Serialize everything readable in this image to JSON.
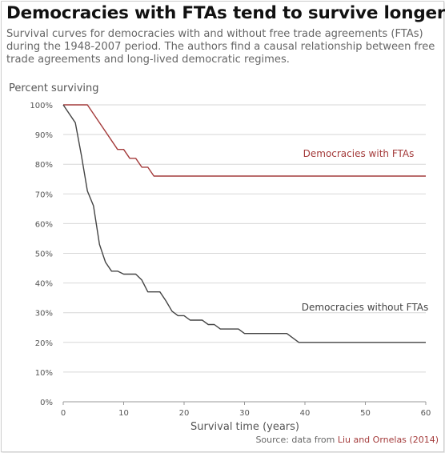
{
  "title": "Democracies with FTAs tend to survive longer",
  "subtitle": "Survival curves for democracies with and without free trade agreements (FTAs) during the 1948-2007 period. The authors find a causal relationship between free trade agreements and long-lived democratic regimes.",
  "source": {
    "prefix": "Source: data from ",
    "link_text": "Liu and Ornelas (2014)"
  },
  "colors": {
    "with_fta": "#a43b3b",
    "without_fta": "#444444",
    "grid": "#d7d7d7",
    "axis": "#999999",
    "text": "#555555"
  },
  "chart_data": {
    "type": "line",
    "ylabel": "Percent surviving",
    "xlabel": "Survival time (years)",
    "xlim": [
      0,
      60
    ],
    "ylim": [
      0,
      100
    ],
    "x_ticks": [
      0,
      10,
      20,
      30,
      40,
      50,
      60
    ],
    "y_ticks": [
      0,
      10,
      20,
      30,
      40,
      50,
      60,
      70,
      80,
      90,
      100
    ],
    "y_tick_labels": [
      "0%",
      "10%",
      "20%",
      "30%",
      "40%",
      "50%",
      "60%",
      "70%",
      "80%",
      "90%",
      "100%"
    ],
    "grid": "horizontal",
    "series": [
      {
        "name": "Democracies with FTAs",
        "color": "#a43b3b",
        "points": [
          [
            0,
            100
          ],
          [
            4,
            100
          ],
          [
            9,
            85
          ],
          [
            10,
            85
          ],
          [
            11,
            82
          ],
          [
            12,
            82
          ],
          [
            13,
            79
          ],
          [
            14,
            79
          ],
          [
            15,
            76
          ],
          [
            60,
            76
          ]
        ]
      },
      {
        "name": "Democracies without FTAs",
        "color": "#444444",
        "points": [
          [
            0,
            100
          ],
          [
            2,
            94
          ],
          [
            3,
            83
          ],
          [
            4,
            71
          ],
          [
            5,
            66
          ],
          [
            6,
            53
          ],
          [
            7,
            47
          ],
          [
            8,
            44
          ],
          [
            9,
            44
          ],
          [
            10,
            43
          ],
          [
            12,
            43
          ],
          [
            13,
            41
          ],
          [
            14,
            37
          ],
          [
            16,
            37
          ],
          [
            17,
            34
          ],
          [
            18,
            30.5
          ],
          [
            19,
            29
          ],
          [
            20,
            29
          ],
          [
            21,
            27.5
          ],
          [
            23,
            27.5
          ],
          [
            24,
            26
          ],
          [
            25,
            26
          ],
          [
            26,
            24.5
          ],
          [
            29,
            24.5
          ],
          [
            30,
            23
          ],
          [
            37,
            23
          ],
          [
            39,
            20
          ],
          [
            60,
            20
          ]
        ]
      }
    ]
  }
}
